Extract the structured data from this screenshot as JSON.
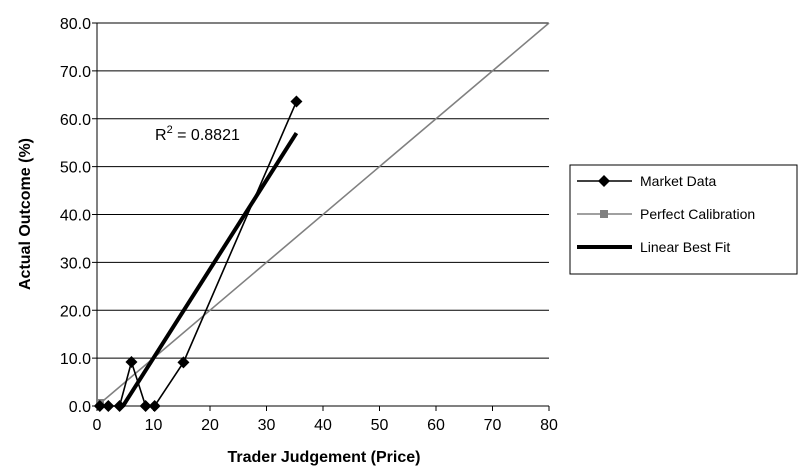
{
  "chart_data": {
    "type": "scatter",
    "title": "",
    "xlabel": "Trader Judgement (Price)",
    "ylabel": "Actual Outcome (%)",
    "xlim": [
      0,
      80
    ],
    "ylim": [
      0,
      80
    ],
    "x_ticks": [
      "0",
      "10",
      "20",
      "30",
      "40",
      "50",
      "60",
      "70",
      "80"
    ],
    "y_ticks": [
      "0.0",
      "10.0",
      "20.0",
      "30.0",
      "40.0",
      "50.0",
      "60.0",
      "70.0",
      "80.0"
    ],
    "grid": "horizontal",
    "legend_position": "right",
    "r_squared_label": "R",
    "r_squared_exponent": "2",
    "r_squared_value": " = 0.8821",
    "series": [
      {
        "name": "Market Data",
        "style": "line-diamond",
        "color": "#000000",
        "x": [
          0.5,
          2,
          4,
          6.1,
          8.6,
          10.2,
          15.3,
          35.3
        ],
        "y": [
          0.0,
          0.0,
          0.0,
          9.2,
          0.0,
          0.0,
          9.1,
          63.6
        ]
      },
      {
        "name": "Perfect Calibration",
        "style": "line-square",
        "color": "#808080",
        "x": [
          0,
          80
        ],
        "y": [
          0,
          80
        ]
      },
      {
        "name": "Linear Best Fit",
        "style": "thick-line",
        "color": "#000000",
        "x": [
          4.6,
          35.3
        ],
        "y": [
          0.0,
          57.0
        ]
      }
    ]
  }
}
